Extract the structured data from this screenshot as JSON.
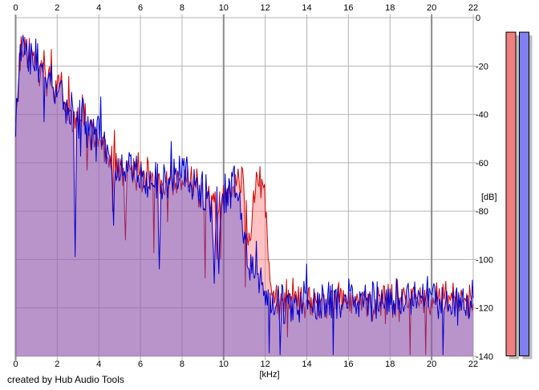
{
  "footer": {
    "credit": "created by Hub Audio Tools"
  },
  "chart_data": {
    "type": "area",
    "title": "",
    "xlabel": "[kHz]",
    "ylabel": "[dB]",
    "xlim": [
      0,
      22
    ],
    "ylim": [
      -140,
      0
    ],
    "x_ticks": [
      0,
      2,
      4,
      6,
      8,
      10,
      12,
      14,
      16,
      18,
      20,
      22
    ],
    "x_major_ticks": [
      0,
      10,
      20
    ],
    "y_ticks": [
      0,
      -20,
      -40,
      -60,
      -80,
      -100,
      -120,
      -140
    ],
    "grid": true,
    "step_khz": 0.044,
    "colors": {
      "background": "#ffffff",
      "grid_minor": "#b3b3b3",
      "grid_major": "#8a8a8a",
      "text": "#000000",
      "meter_shadow": "#bdbdbd",
      "meter_border": "#000000"
    },
    "series": [
      {
        "name": "red-spectrum",
        "line_color": "#d40000",
        "fill_color": "#ff6e6e",
        "fill_opacity": 0.42,
        "seed": 1234567,
        "noise_db": 5,
        "notch_chance": 0.05,
        "notch_extra": 18,
        "spike_chance": 0.06,
        "spike_extra": 6,
        "notches": [
          [
            5.3,
            -92
          ],
          [
            9.7,
            -100
          ]
        ],
        "envelope": [
          [
            0,
            -50
          ],
          [
            0.12,
            -32
          ],
          [
            0.2,
            -22
          ],
          [
            0.3,
            -16
          ],
          [
            0.42,
            -20
          ],
          [
            0.55,
            -19
          ],
          [
            0.7,
            -23
          ],
          [
            0.85,
            -22
          ],
          [
            1.0,
            -26
          ],
          [
            1.15,
            -25
          ],
          [
            1.3,
            -29
          ],
          [
            1.5,
            -31
          ],
          [
            1.65,
            -30
          ],
          [
            1.8,
            -33
          ],
          [
            2.0,
            -35
          ],
          [
            2.15,
            -34
          ],
          [
            2.3,
            -40
          ],
          [
            2.5,
            -42
          ],
          [
            2.7,
            -44
          ],
          [
            2.9,
            -49
          ],
          [
            3.1,
            -46
          ],
          [
            3.3,
            -47
          ],
          [
            3.5,
            -52
          ],
          [
            3.7,
            -54
          ],
          [
            3.9,
            -56
          ],
          [
            4.1,
            -57
          ],
          [
            4.3,
            -60
          ],
          [
            4.6,
            -63
          ],
          [
            5.0,
            -66
          ],
          [
            5.4,
            -68
          ],
          [
            5.8,
            -69
          ],
          [
            6.2,
            -70
          ],
          [
            6.6,
            -72
          ],
          [
            7.0,
            -73
          ],
          [
            7.4,
            -72
          ],
          [
            7.8,
            -71
          ],
          [
            8.2,
            -72
          ],
          [
            8.6,
            -75
          ],
          [
            9.0,
            -78
          ],
          [
            9.3,
            -80
          ],
          [
            9.6,
            -82
          ],
          [
            9.9,
            -79
          ],
          [
            10.2,
            -77
          ],
          [
            10.5,
            -77
          ],
          [
            10.7,
            -76
          ],
          [
            10.85,
            -75
          ],
          [
            11.0,
            -76
          ],
          [
            11.1,
            -88
          ],
          [
            11.2,
            -100
          ],
          [
            11.3,
            -95
          ],
          [
            11.4,
            -82
          ],
          [
            11.5,
            -76
          ],
          [
            11.6,
            -74
          ],
          [
            11.75,
            -74
          ],
          [
            11.9,
            -76
          ],
          [
            12.0,
            -82
          ],
          [
            12.1,
            -95
          ],
          [
            12.2,
            -110
          ],
          [
            12.35,
            -120
          ],
          [
            12.6,
            -122
          ],
          [
            13,
            -122
          ],
          [
            14,
            -122
          ],
          [
            16,
            -122
          ],
          [
            18,
            -122
          ],
          [
            20,
            -122
          ],
          [
            22,
            -122
          ]
        ]
      },
      {
        "name": "blue-spectrum",
        "line_color": "#0000d0",
        "fill_color": "#5050d8",
        "fill_opacity": 0.4,
        "seed": 7654321,
        "noise_db": 5.5,
        "notch_chance": 0.05,
        "notch_extra": 20,
        "spike_chance": 0.05,
        "spike_extra": 5,
        "notches": [
          [
            2.88,
            -99
          ],
          [
            4.7,
            -86
          ],
          [
            6.9,
            -104
          ],
          [
            9.55,
            -110
          ],
          [
            9.75,
            -106
          ]
        ],
        "envelope": [
          [
            0,
            -50
          ],
          [
            0.12,
            -32
          ],
          [
            0.2,
            -22
          ],
          [
            0.3,
            -15
          ],
          [
            0.42,
            -19
          ],
          [
            0.55,
            -19
          ],
          [
            0.7,
            -23
          ],
          [
            0.85,
            -21
          ],
          [
            1.0,
            -26
          ],
          [
            1.15,
            -24
          ],
          [
            1.3,
            -29
          ],
          [
            1.5,
            -31
          ],
          [
            1.65,
            -29
          ],
          [
            1.8,
            -33
          ],
          [
            2.0,
            -35
          ],
          [
            2.15,
            -33
          ],
          [
            2.3,
            -40
          ],
          [
            2.5,
            -42
          ],
          [
            2.7,
            -44
          ],
          [
            2.9,
            -50
          ],
          [
            3.1,
            -46
          ],
          [
            3.3,
            -47
          ],
          [
            3.5,
            -51
          ],
          [
            3.7,
            -54
          ],
          [
            3.9,
            -56
          ],
          [
            4.1,
            -56
          ],
          [
            4.3,
            -60
          ],
          [
            4.6,
            -63
          ],
          [
            5.0,
            -66
          ],
          [
            5.4,
            -67
          ],
          [
            5.8,
            -69
          ],
          [
            6.2,
            -70
          ],
          [
            6.6,
            -72
          ],
          [
            7.0,
            -73
          ],
          [
            7.4,
            -72
          ],
          [
            7.8,
            -70
          ],
          [
            8.2,
            -72
          ],
          [
            8.6,
            -75
          ],
          [
            9.0,
            -79
          ],
          [
            9.3,
            -83
          ],
          [
            9.6,
            -85
          ],
          [
            9.9,
            -80
          ],
          [
            10.2,
            -77
          ],
          [
            10.5,
            -76
          ],
          [
            10.7,
            -80
          ],
          [
            10.9,
            -90
          ],
          [
            11.1,
            -101
          ],
          [
            11.3,
            -110
          ],
          [
            11.5,
            -107
          ],
          [
            11.7,
            -110
          ],
          [
            11.9,
            -116
          ],
          [
            12.1,
            -120
          ],
          [
            12.4,
            -122
          ],
          [
            13,
            -123
          ],
          [
            14,
            -123
          ],
          [
            15,
            -122
          ],
          [
            16,
            -123
          ],
          [
            17,
            -122
          ],
          [
            18,
            -123
          ],
          [
            19,
            -122
          ],
          [
            20,
            -122
          ],
          [
            21,
            -123
          ],
          [
            22,
            -123
          ]
        ]
      }
    ],
    "meters": [
      {
        "name": "left-peak-meter",
        "value_db": -6,
        "fill": "#f08080"
      },
      {
        "name": "right-peak-meter",
        "value_db": -6,
        "fill": "#8080f0"
      }
    ]
  }
}
